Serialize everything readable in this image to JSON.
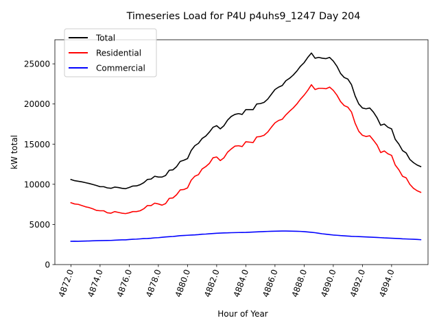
{
  "chart_data": {
    "type": "line",
    "title": "Timeseries Load for P4U p4uhs9_1247  Day 204",
    "xlabel": "Hour of Year",
    "ylabel": "kW total",
    "xlim": [
      4870.9,
      4896.5
    ],
    "ylim": [
      0,
      28000
    ],
    "xticks": [
      4872,
      4874,
      4876,
      4878,
      4880,
      4882,
      4884,
      4886,
      4888,
      4890,
      4892,
      4894
    ],
    "xtick_labels": [
      "4872.0",
      "4874.0",
      "4876.0",
      "4878.0",
      "4880.0",
      "4882.0",
      "4884.0",
      "4886.0",
      "4888.0",
      "4890.0",
      "4892.0",
      "4894.0"
    ],
    "yticks": [
      0,
      5000,
      10000,
      15000,
      20000,
      25000
    ],
    "ytick_labels": [
      "0",
      "5000",
      "10000",
      "15000",
      "20000",
      "25000"
    ],
    "legend_position": "top-left",
    "x_start": 4872.0,
    "x_step": 0.25,
    "series": [
      {
        "name": "Total",
        "color": "#000000",
        "values": [
          10600,
          10450,
          10380,
          10300,
          10200,
          10100,
          9980,
          9850,
          9700,
          9700,
          9550,
          9500,
          9650,
          9600,
          9500,
          9450,
          9600,
          9780,
          9800,
          9950,
          10200,
          10600,
          10650,
          11000,
          10900,
          10900,
          11100,
          11750,
          11800,
          12200,
          12850,
          13000,
          13200,
          14200,
          14800,
          15100,
          15700,
          16000,
          16500,
          17100,
          17300,
          16900,
          17300,
          18000,
          18450,
          18700,
          18800,
          18700,
          19300,
          19300,
          19300,
          20000,
          20050,
          20200,
          20600,
          21200,
          21800,
          22100,
          22300,
          22900,
          23200,
          23600,
          24100,
          24700,
          25150,
          25800,
          26350,
          25700,
          25800,
          25700,
          25650,
          25800,
          25350,
          24700,
          23800,
          23300,
          23100,
          22400,
          21000,
          20000,
          19500,
          19400,
          19500,
          19000,
          18300,
          17350,
          17500,
          17100,
          16900,
          15600,
          15000,
          14200,
          13900,
          13100,
          12700,
          12400,
          12200
        ]
      },
      {
        "name": "Residential",
        "color": "#ff0000",
        "values": [
          7700,
          7550,
          7500,
          7350,
          7200,
          7100,
          6950,
          6750,
          6700,
          6700,
          6450,
          6400,
          6600,
          6500,
          6400,
          6350,
          6450,
          6600,
          6600,
          6700,
          6950,
          7350,
          7350,
          7650,
          7550,
          7400,
          7600,
          8250,
          8300,
          8700,
          9300,
          9350,
          9550,
          10500,
          11000,
          11200,
          11900,
          12200,
          12600,
          13300,
          13400,
          12950,
          13300,
          14000,
          14400,
          14750,
          14800,
          14700,
          15300,
          15250,
          15200,
          15900,
          15950,
          16100,
          16500,
          17100,
          17650,
          17950,
          18100,
          18650,
          19100,
          19500,
          20000,
          20600,
          21100,
          21700,
          22400,
          21800,
          21950,
          21950,
          21900,
          22100,
          21700,
          21100,
          20300,
          19800,
          19600,
          19000,
          17600,
          16600,
          16100,
          15950,
          16050,
          15500,
          14900,
          13950,
          14150,
          13800,
          13600,
          12400,
          11800,
          11000,
          10800,
          10000,
          9500,
          9200,
          9000
        ]
      },
      {
        "name": "Commercial",
        "color": "#0000ff",
        "values": [
          2900,
          2910,
          2900,
          2920,
          2930,
          2940,
          2960,
          2970,
          2980,
          2990,
          3000,
          3010,
          3040,
          3060,
          3080,
          3080,
          3120,
          3150,
          3170,
          3200,
          3240,
          3250,
          3280,
          3330,
          3350,
          3400,
          3440,
          3470,
          3500,
          3550,
          3600,
          3620,
          3650,
          3680,
          3700,
          3730,
          3780,
          3800,
          3840,
          3870,
          3900,
          3920,
          3940,
          3950,
          3970,
          3980,
          3990,
          4000,
          4010,
          4030,
          4050,
          4070,
          4090,
          4110,
          4130,
          4150,
          4160,
          4170,
          4180,
          4180,
          4170,
          4160,
          4150,
          4130,
          4100,
          4060,
          4020,
          3970,
          3900,
          3830,
          3780,
          3730,
          3680,
          3650,
          3610,
          3580,
          3550,
          3520,
          3500,
          3480,
          3460,
          3440,
          3420,
          3400,
          3380,
          3350,
          3320,
          3300,
          3280,
          3260,
          3240,
          3210,
          3190,
          3170,
          3150,
          3130,
          3100
        ]
      }
    ]
  }
}
